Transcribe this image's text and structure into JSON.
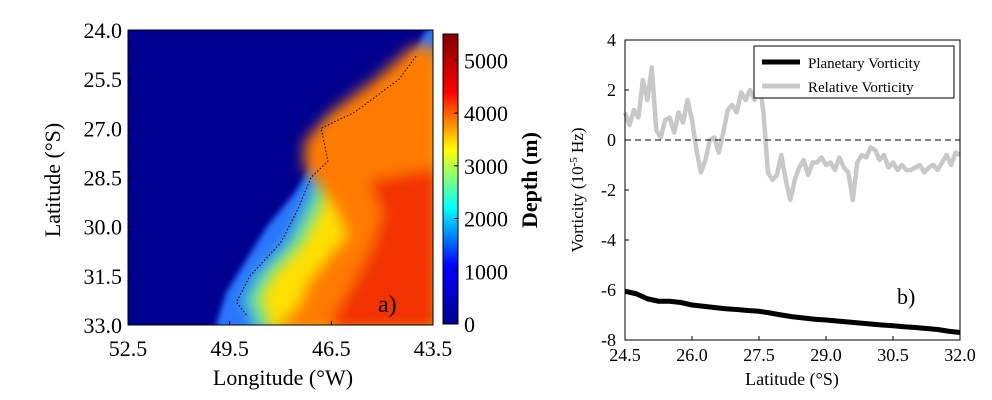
{
  "chart_data": [
    {
      "type": "heatmap",
      "panel_label": "a)",
      "xlabel": "Longitude (°W)",
      "ylabel": "Latitude (°S)",
      "xticks": [
        "52.5",
        "49.5",
        "46.5",
        "43.5"
      ],
      "yticks": [
        "24.0",
        "25.5",
        "27.0",
        "28.5",
        "30.0",
        "31.5",
        "33.0"
      ],
      "xlim": [
        52.5,
        43.5
      ],
      "ylim": [
        24.0,
        33.0
      ],
      "colorbar": {
        "label": "Depth (m)",
        "range": [
          0,
          5500
        ],
        "ticks": [
          "0",
          "1000",
          "2000",
          "3000",
          "4000",
          "5000"
        ],
        "colormap": "jet",
        "colors": [
          "#00008f",
          "#0000ff",
          "#00ffff",
          "#ffff00",
          "#ff0000",
          "#800000"
        ]
      },
      "land_color": "#00008f",
      "coastline_lon_at_lat": [
        [
          24.0,
          43.7
        ],
        [
          25.0,
          44.2
        ],
        [
          26.0,
          45.3
        ],
        [
          27.0,
          46.2
        ],
        [
          28.0,
          47.0
        ],
        [
          29.0,
          47.6
        ],
        [
          30.0,
          48.4
        ],
        [
          31.0,
          49.0
        ],
        [
          32.0,
          49.6
        ],
        [
          33.0,
          49.9
        ]
      ],
      "isobath_1000m_lon_at_lat": [
        [
          24.8,
          44.0
        ],
        [
          25.5,
          44.5
        ],
        [
          26.5,
          45.8
        ],
        [
          27.0,
          46.8
        ],
        [
          28.0,
          46.6
        ],
        [
          28.5,
          47.1
        ],
        [
          29.5,
          47.5
        ],
        [
          30.5,
          48.0
        ],
        [
          31.5,
          48.9
        ],
        [
          32.3,
          49.3
        ],
        [
          32.7,
          49.0
        ]
      ],
      "shelf_break_lon_at_lat": [
        [
          24.5,
          44.1
        ],
        [
          25.5,
          45.2
        ],
        [
          26.5,
          46.5
        ],
        [
          27.4,
          47.3
        ],
        [
          28.2,
          47.3
        ],
        [
          28.8,
          46.8
        ],
        [
          29.5,
          46.3
        ],
        [
          30.3,
          46.0
        ],
        [
          31.0,
          46.6
        ],
        [
          31.8,
          47.2
        ],
        [
          32.4,
          47.4
        ],
        [
          33.0,
          48.0
        ]
      ]
    },
    {
      "type": "line",
      "panel_label": "b)",
      "xlabel": "Latitude (°S)",
      "ylabel_main": "Vorticity (10",
      "ylabel_exp": "-5",
      "ylabel_unit": " Hz)",
      "xticks": [
        "24.5",
        "26.0",
        "27.5",
        "29.0",
        "30.5",
        "32.0"
      ],
      "yticks": [
        "4",
        "2",
        "0",
        "-2",
        "-4",
        "-6",
        "-8"
      ],
      "xlim": [
        24.5,
        32.0
      ],
      "ylim": [
        -8,
        4
      ],
      "zero_line": true,
      "legend_position": "top-right",
      "series": [
        {
          "name": "Planetary Vorticity",
          "color": "#000000",
          "x": [
            24.5,
            24.75,
            25.0,
            25.25,
            25.5,
            25.75,
            26.0,
            26.25,
            26.5,
            26.75,
            27.0,
            27.25,
            27.5,
            27.75,
            28.0,
            28.25,
            28.5,
            28.75,
            29.0,
            29.25,
            29.5,
            29.75,
            30.0,
            30.25,
            30.5,
            30.75,
            31.0,
            31.25,
            31.5,
            31.75,
            32.0
          ],
          "values": [
            -6.05,
            -6.15,
            -6.35,
            -6.45,
            -6.45,
            -6.5,
            -6.6,
            -6.65,
            -6.7,
            -6.75,
            -6.78,
            -6.82,
            -6.85,
            -6.92,
            -7.0,
            -7.07,
            -7.12,
            -7.17,
            -7.2,
            -7.24,
            -7.28,
            -7.32,
            -7.36,
            -7.4,
            -7.43,
            -7.47,
            -7.5,
            -7.54,
            -7.58,
            -7.65,
            -7.7
          ]
        },
        {
          "name": "Relative Vorticity",
          "color": "#c8c8c8",
          "x": [
            24.5,
            24.6,
            24.7,
            24.8,
            24.9,
            25.0,
            25.1,
            25.2,
            25.3,
            25.4,
            25.5,
            25.6,
            25.7,
            25.8,
            25.9,
            26.0,
            26.1,
            26.2,
            26.3,
            26.4,
            26.5,
            26.6,
            26.7,
            26.8,
            26.9,
            27.0,
            27.1,
            27.2,
            27.3,
            27.4,
            27.5,
            27.6,
            27.7,
            27.8,
            27.9,
            28.0,
            28.1,
            28.2,
            28.3,
            28.4,
            28.5,
            28.6,
            28.7,
            28.8,
            28.9,
            29.0,
            29.1,
            29.2,
            29.3,
            29.4,
            29.5,
            29.6,
            29.7,
            29.8,
            29.9,
            30.0,
            30.1,
            30.2,
            30.3,
            30.4,
            30.5,
            30.6,
            30.7,
            30.8,
            30.9,
            31.0,
            31.1,
            31.2,
            31.3,
            31.4,
            31.5,
            31.6,
            31.7,
            31.8,
            31.9,
            32.0
          ],
          "values": [
            1.1,
            0.6,
            1.2,
            0.9,
            2.4,
            1.6,
            2.9,
            0.4,
            0.1,
            0.8,
            0.9,
            0.3,
            1.1,
            0.7,
            1.6,
            0.8,
            -0.4,
            -1.3,
            -0.8,
            0.0,
            0.1,
            -0.5,
            0.3,
            1.2,
            1.4,
            1.1,
            1.9,
            1.6,
            2.0,
            1.6,
            2.4,
            1.1,
            -1.3,
            -1.6,
            -1.4,
            -0.6,
            -1.6,
            -2.4,
            -1.6,
            -1.1,
            -0.8,
            -1.4,
            -0.9,
            -0.9,
            -0.7,
            -1.0,
            -0.9,
            -1.2,
            -0.7,
            -1.1,
            -1.3,
            -2.4,
            -0.9,
            -0.6,
            -0.7,
            -0.3,
            -0.4,
            -0.8,
            -0.6,
            -1.1,
            -0.9,
            -1.2,
            -1.0,
            -1.2,
            -1.2,
            -1.1,
            -1.0,
            -1.3,
            -1.1,
            -1.0,
            -1.2,
            -0.9,
            -0.6,
            -1.0,
            -0.5,
            -0.6
          ]
        }
      ]
    }
  ]
}
